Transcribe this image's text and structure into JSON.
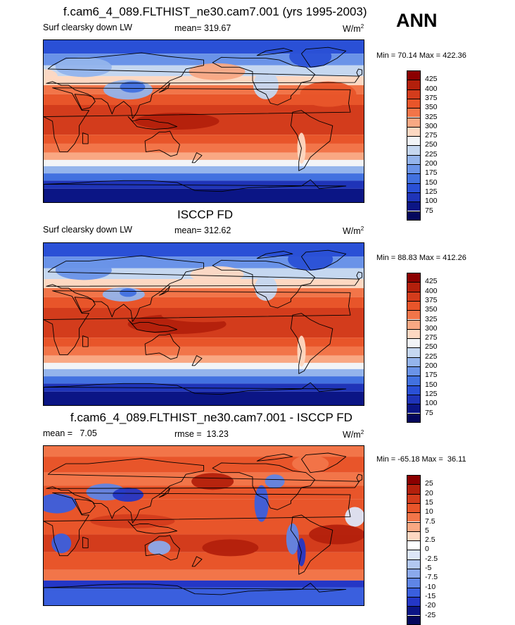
{
  "header": {
    "case_title": "f.cam6_4_089.FLTHIST_ne30.cam7.001 (yrs 1995-2003)",
    "season": "ANN"
  },
  "panels": [
    {
      "title": "f.cam6_4_089.FLTHIST_ne30.cam7.001 (yrs 1995-2003)",
      "left_label": "Surf clearsky down LW",
      "center_label": "mean= 319.67",
      "unit": "W/m",
      "unit_sup": "2",
      "min_max": "Min =  70.14 Max = 422.36",
      "levels": [
        "425",
        "400",
        "375",
        "350",
        "325",
        "300",
        "275",
        "250",
        "225",
        "200",
        "175",
        "150",
        "125",
        "100",
        "75"
      ],
      "colors": [
        "#8b0000",
        "#b3200c",
        "#d33c1c",
        "#e8552a",
        "#f27549",
        "#f9a883",
        "#fdd8c2",
        "#f2f4f7",
        "#c5d7f0",
        "#94b4ec",
        "#6a93e8",
        "#4271e0",
        "#2a50d6",
        "#1f34b8",
        "#0b1585",
        "#04075c"
      ]
    },
    {
      "title": "ISCCP FD",
      "left_label": "Surf clearsky down LW",
      "center_label": "mean= 312.62",
      "unit": "W/m",
      "unit_sup": "2",
      "min_max": "Min =  88.83 Max = 412.26",
      "levels": [
        "425",
        "400",
        "375",
        "350",
        "325",
        "300",
        "275",
        "250",
        "225",
        "200",
        "175",
        "150",
        "125",
        "100",
        "75"
      ],
      "colors": [
        "#8b0000",
        "#b3200c",
        "#d33c1c",
        "#e8552a",
        "#f27549",
        "#f9a883",
        "#fdd8c2",
        "#f2f4f7",
        "#c5d7f0",
        "#94b4ec",
        "#6a93e8",
        "#4271e0",
        "#2a50d6",
        "#1f34b8",
        "#0b1585",
        "#04075c"
      ]
    },
    {
      "title": "f.cam6_4_089.FLTHIST_ne30.cam7.001 - ISCCP FD",
      "left_label": "mean =   7.05",
      "center_label": "rmse =  13.23",
      "unit": "W/m",
      "unit_sup": "2",
      "min_max": "Min = -65.18 Max =  36.11",
      "levels": [
        "25",
        "20",
        "15",
        "10",
        "7.5",
        "5",
        "2.5",
        "0",
        "-2.5",
        "-5",
        "-7.5",
        "-10",
        "-15",
        "-20",
        "-25"
      ],
      "colors": [
        "#8b0000",
        "#b3200c",
        "#d33c1c",
        "#e8552a",
        "#f27549",
        "#f9a883",
        "#fdd8c2",
        "#ffffff",
        "#dce6f8",
        "#b2c8f1",
        "#8ba9ec",
        "#5f85e6",
        "#3a5fde",
        "#2437c6",
        "#0b1585",
        "#04075c"
      ]
    }
  ]
}
